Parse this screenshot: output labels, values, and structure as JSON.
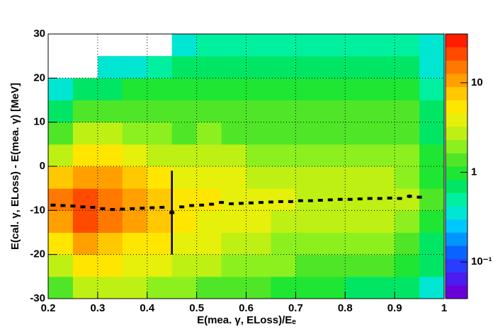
{
  "chart_data": {
    "type": "heatmap",
    "x_label": "E(mea. γ, ELoss)/Eₑ",
    "y_label": "E(cal. γ, ELoss) - E(mea. γ) [MeV]",
    "xlim": [
      0.2,
      1
    ],
    "ylim": [
      -30,
      30
    ],
    "xticks": [
      0.2,
      0.3,
      0.4,
      0.5,
      0.6,
      0.7,
      0.8,
      0.9,
      1
    ],
    "yticks": [
      -30,
      -20,
      -10,
      0,
      10,
      20,
      30
    ],
    "grid": true,
    "x_bins": [
      0.2,
      0.25,
      0.3,
      0.35,
      0.4,
      0.45,
      0.5,
      0.55,
      0.6,
      0.65,
      0.7,
      0.75,
      0.8,
      0.85,
      0.9,
      0.95,
      1.0
    ],
    "y_bins": [
      -30,
      -25,
      -20,
      -15,
      -10,
      -5,
      0,
      5,
      10,
      15,
      20,
      25,
      30
    ],
    "z": [
      [
        1.5,
        2.5,
        2.5,
        2.5,
        2,
        2,
        1.6,
        1.5,
        1.3,
        1.1,
        1,
        0.9,
        0.8,
        0.8,
        0.7,
        0.4
      ],
      [
        3,
        5,
        5,
        4,
        3.5,
        3,
        2.5,
        2.2,
        2,
        1.7,
        1.5,
        1.4,
        1.3,
        1.2,
        1.1,
        0.6
      ],
      [
        6,
        10,
        8,
        6,
        5,
        4,
        3.5,
        3,
        2.6,
        2.3,
        2.2,
        2,
        1.8,
        1.7,
        1.6,
        0.8
      ],
      [
        12,
        20,
        14,
        9,
        7,
        5.5,
        4.5,
        4,
        3.5,
        3,
        2.8,
        2.6,
        2.5,
        2.4,
        2.2,
        1
      ],
      [
        15,
        22,
        15,
        10,
        8,
        6,
        5,
        4.5,
        4,
        3.5,
        3.2,
        3,
        3,
        2.8,
        2.6,
        1.2
      ],
      [
        8,
        12,
        10,
        7,
        5,
        4,
        4,
        3.5,
        3,
        2.8,
        2.6,
        2.6,
        2.5,
        2.4,
        2.2,
        1
      ],
      [
        3,
        5,
        5,
        4,
        3,
        2.5,
        3,
        2.5,
        2.2,
        2,
        2,
        2,
        2,
        2,
        1.8,
        0.9
      ],
      [
        1.5,
        2.5,
        2.5,
        2,
        1.8,
        1.6,
        1.8,
        1.6,
        1.5,
        1.5,
        1.5,
        1.5,
        1.5,
        1.5,
        1.4,
        0.7
      ],
      [
        0.8,
        1.2,
        1.4,
        1.3,
        1.2,
        1.2,
        1.3,
        1.2,
        1.2,
        1.2,
        1.2,
        1.2,
        1.2,
        1.2,
        1.2,
        0.6
      ],
      [
        0.4,
        0.6,
        0.8,
        0.9,
        0.9,
        0.9,
        1,
        1,
        1,
        1,
        1,
        1,
        1,
        1,
        1,
        0.5
      ],
      [
        null,
        null,
        0.3,
        0.4,
        0.5,
        0.6,
        0.7,
        0.7,
        0.7,
        0.7,
        0.7,
        0.7,
        0.7,
        0.7,
        0.7,
        0.4
      ],
      [
        null,
        null,
        null,
        null,
        null,
        0.3,
        0.5,
        0.5,
        0.5,
        0.5,
        0.5,
        0.5,
        0.5,
        0.5,
        0.5,
        0.3
      ]
    ],
    "zscale": "log",
    "zlim": [
      0.039,
      35
    ],
    "zticks": [
      {
        "value": 0.1,
        "label": "10⁻¹"
      },
      1,
      10
    ],
    "palette": [
      "#6a00d8",
      "#4b1cf0",
      "#2a3cff",
      "#0a64ff",
      "#0096ff",
      "#00c8ff",
      "#00e6d2",
      "#00f0a0",
      "#00e664",
      "#1ee632",
      "#50e628",
      "#8cf01e",
      "#bef014",
      "#e6f00a",
      "#ffe600",
      "#ffc800",
      "#ffa000",
      "#ff7800",
      "#ff4b00",
      "#ff1e00"
    ],
    "profile": {
      "color": "#000000",
      "x": [
        0.21,
        0.23,
        0.25,
        0.27,
        0.29,
        0.31,
        0.33,
        0.35,
        0.37,
        0.39,
        0.41,
        0.43,
        0.45,
        0.47,
        0.49,
        0.51,
        0.53,
        0.55,
        0.57,
        0.59,
        0.61,
        0.63,
        0.65,
        0.67,
        0.69,
        0.71,
        0.73,
        0.75,
        0.77,
        0.79,
        0.81,
        0.83,
        0.85,
        0.87,
        0.89,
        0.91,
        0.93,
        0.95
      ],
      "values": [
        -8.8,
        -8.9,
        -9.0,
        -9.2,
        -9.3,
        -9.6,
        -9.8,
        -9.7,
        -9.6,
        -9.5,
        -9.4,
        -9.3,
        -10.5,
        -9.2,
        -8.9,
        -8.8,
        -8.6,
        -8.2,
        -8.5,
        -8.4,
        -8.3,
        -8.2,
        -8.1,
        -8.0,
        -8.0,
        -7.8,
        -7.8,
        -7.7,
        -7.6,
        -7.5,
        -7.5,
        -7.4,
        -7.3,
        -7.3,
        -7.2,
        -7.3,
        -6.8,
        -7.0
      ],
      "errors": [
        0.3,
        0.3,
        0.3,
        0.3,
        0.3,
        0.3,
        0.3,
        0.3,
        0.3,
        0.3,
        0.3,
        0.3,
        9.5,
        0.3,
        0.3,
        0.3,
        0.3,
        0.3,
        0.3,
        0.3,
        0.3,
        0.3,
        0.3,
        0.3,
        0.3,
        0.3,
        0.3,
        0.3,
        0.3,
        0.3,
        0.3,
        0.3,
        0.3,
        0.3,
        0.3,
        0.3,
        0.4,
        0.3
      ]
    }
  }
}
